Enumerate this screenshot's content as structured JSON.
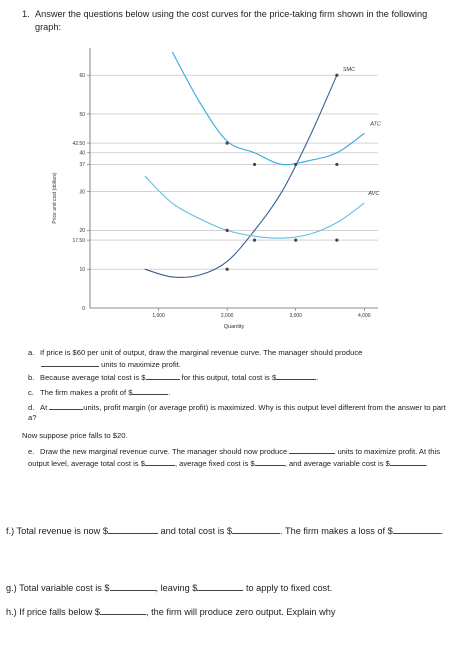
{
  "question1": {
    "number": "1.",
    "text": "Answer the questions below using the cost curves for the price-taking firm shown in the following graph:"
  },
  "chart_data": {
    "type": "line",
    "xlabel": "Quantity",
    "ylabel": "Price and cost (dollars)",
    "xlim": [
      0,
      4200
    ],
    "ylim": [
      0,
      67
    ],
    "x_ticks": [
      "1,000",
      "2,000",
      "3,000",
      "4,000"
    ],
    "x_tick_values": [
      1000,
      2000,
      3000,
      4000
    ],
    "y_ticks": [
      "0",
      "10",
      "17.50",
      "20",
      "30",
      "37",
      "40",
      "42.50",
      "50",
      "60"
    ],
    "y_tick_values": [
      0,
      10,
      17.5,
      20,
      30,
      37,
      40,
      42.5,
      50,
      60
    ],
    "series": [
      {
        "name": "SMC",
        "x": [
          800,
          1200,
          1600,
          2000,
          2400,
          2800,
          3200,
          3600
        ],
        "y": [
          10,
          8,
          8.5,
          12,
          20,
          30,
          44,
          60
        ]
      },
      {
        "name": "ATC",
        "x": [
          1200,
          1600,
          2000,
          2400,
          2800,
          3200,
          3600,
          4000
        ],
        "y": [
          66,
          53,
          43,
          40,
          37,
          38,
          40,
          45
        ]
      },
      {
        "name": "AVC",
        "x": [
          800,
          1200,
          1600,
          2000,
          2400,
          2800,
          3200,
          3600,
          4000
        ],
        "y": [
          34,
          27,
          23,
          20,
          18.5,
          18,
          19,
          22,
          27
        ]
      }
    ],
    "points": [
      {
        "x": 2000,
        "y": 42.5
      },
      {
        "x": 2400,
        "y": 37
      },
      {
        "x": 3000,
        "y": 37
      },
      {
        "x": 3600,
        "y": 37
      },
      {
        "x": 3600,
        "y": 60
      },
      {
        "x": 2000,
        "y": 20
      },
      {
        "x": 2400,
        "y": 17.5
      },
      {
        "x": 3000,
        "y": 17.5
      },
      {
        "x": 3600,
        "y": 17.5
      },
      {
        "x": 2000,
        "y": 10
      }
    ]
  },
  "questions": [
    {
      "label": "a.",
      "parts": [
        "If price is $60 per unit of output, draw the marginal revenue curve. The manager should produce ",
        "",
        " units to maximize profit."
      ]
    },
    {
      "label": "b.",
      "parts": [
        "Because average total cost is $",
        "",
        " for this output, total cost is $",
        "",
        "."
      ]
    },
    {
      "label": "c.",
      "parts": [
        "The firm makes a profit of $",
        "",
        "."
      ]
    },
    {
      "label": "d.",
      "parts": [
        "At ",
        "",
        "units, profit margin (or average profit) is maximized. Why is this output level different from the answer to part a?"
      ]
    }
  ],
  "now_suppose": "Now suppose price falls to $20.",
  "question_e": {
    "label": "e.",
    "parts": [
      "Draw the new marginal revenue curve. The manager should now produce ",
      "",
      " units to maximize profit. At this output level, average total cost is $",
      "",
      ", average fixed cost is $",
      "",
      ", and average variable cost is $",
      "",
      "."
    ]
  },
  "question_f": {
    "parts": [
      "f.) Total revenue is now $",
      "",
      " and total cost is $",
      "",
      ". The firm makes a loss of $",
      "",
      "."
    ]
  },
  "question_g": {
    "parts": [
      "g.) Total variable cost is $",
      "",
      ", leaving $",
      "",
      " to apply to fixed cost."
    ]
  },
  "question_h": {
    "parts": [
      "h.) If price falls below $",
      "",
      ", the firm will produce zero output. Explain why"
    ]
  }
}
